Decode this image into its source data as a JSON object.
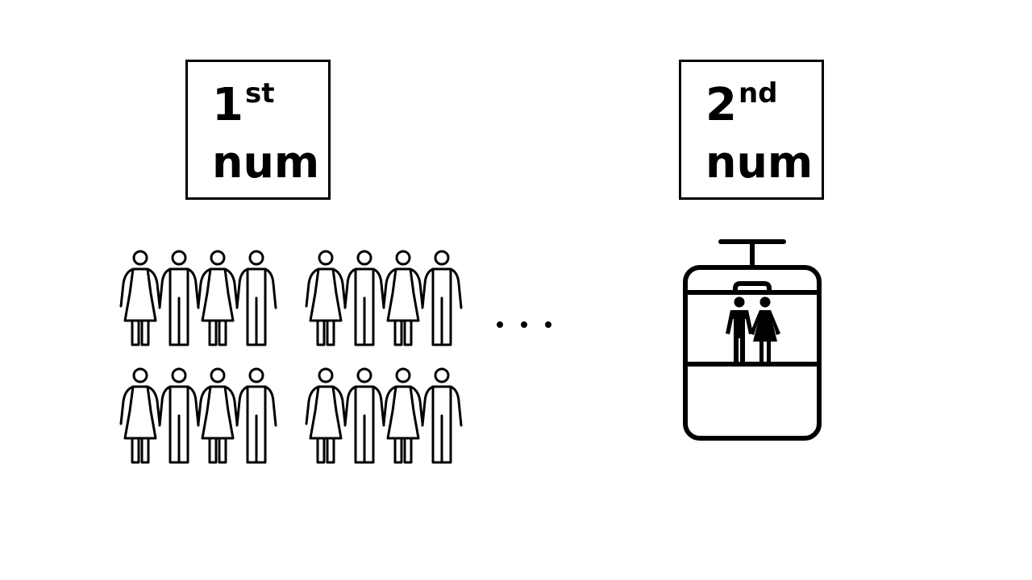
{
  "boxes": {
    "first": {
      "number": "1",
      "suffix": "st",
      "word": "num"
    },
    "second": {
      "number": "2",
      "suffix": "nd",
      "word": "num"
    }
  },
  "crowd": {
    "groups": 2,
    "rows": 2,
    "pairs_per_row": 2,
    "pair_order": [
      "woman-icon",
      "man-icon"
    ],
    "continuation": "ellipsis"
  },
  "gondola": {
    "icon": "cable-car-icon",
    "passengers": [
      "man-icon",
      "woman-icon"
    ]
  },
  "colors": {
    "stroke": "#000000",
    "background": "#ffffff"
  }
}
